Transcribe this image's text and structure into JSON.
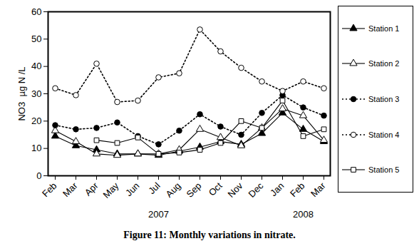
{
  "chart_data": {
    "type": "line",
    "title": "Figure 11: Monthly variations in nitrate.",
    "y_label": "NO3  µg N /L",
    "categories": [
      "Feb",
      "Mar",
      "Apr",
      "May",
      "Jun",
      "Jul",
      "Aug",
      "Sep",
      "Oct",
      "Nov",
      "Dec",
      "Jan",
      "Feb",
      "Mar"
    ],
    "x_groups": [
      {
        "label": "2007",
        "categories": [
          "Feb",
          "Mar",
          "Apr",
          "May",
          "Jun",
          "Jul",
          "Aug",
          "Sep",
          "Oct",
          "Nov",
          "Dec"
        ]
      },
      {
        "label": "2008",
        "categories": [
          "Jan",
          "Feb",
          "Mar"
        ]
      }
    ],
    "ylim": [
      0,
      60
    ],
    "yticks": [
      0,
      10,
      20,
      30,
      40,
      50,
      60
    ],
    "grid": false,
    "legend": "right",
    "series": [
      {
        "name": "Station 1",
        "color": "#000000",
        "marker": "triangle",
        "line_style": "solid",
        "values": [
          14.5,
          11,
          9.5,
          8,
          8,
          7.5,
          9,
          10.5,
          12.5,
          11.5,
          15.5,
          23,
          17,
          12.5
        ]
      },
      {
        "name": "Station 2",
        "color": "#000000",
        "marker": "open-triangle",
        "line_style": "solid",
        "values": [
          16.5,
          12.5,
          8,
          7.5,
          8,
          8,
          9.5,
          17,
          14,
          11,
          17.5,
          24.5,
          22,
          13
        ]
      },
      {
        "name": "Station 3",
        "color": "#000000",
        "marker": "circle",
        "line_style": "dotted",
        "values": [
          18.5,
          17,
          17.5,
          19.5,
          14.5,
          11.5,
          16.5,
          22.5,
          18,
          15,
          23,
          29.5,
          25,
          22
        ]
      },
      {
        "name": "Station 4",
        "color": "#000000",
        "marker": "open-circle",
        "line_style": "dotted",
        "values": [
          32,
          29.5,
          41,
          27,
          27.5,
          36,
          37.5,
          53.5,
          45.5,
          39.5,
          34.5,
          31,
          34.5,
          32
        ]
      },
      {
        "name": "Station 5",
        "color": "#000000",
        "marker": "open-square",
        "line_style": "solid",
        "values": [
          null,
          null,
          13,
          12,
          14,
          8,
          8.5,
          9.5,
          12,
          20,
          17.5,
          27.5,
          14.5,
          17
        ]
      }
    ]
  }
}
